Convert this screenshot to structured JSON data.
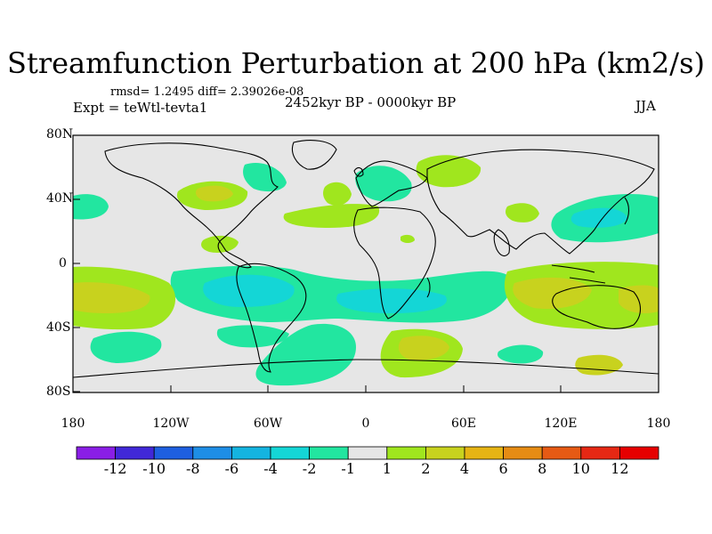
{
  "title": "Streamfunction Perturbation at 200 hPa (km2/s)",
  "stats_line": "rmsd= 1.2495 diff= 2.39026e-08",
  "experiment": "Expt = teWtl-tevta1",
  "period": "2452kyr BP - 0000kyr BP",
  "season": "JJA",
  "y_axis_labels": [
    "80N",
    "40N",
    "0",
    "40S",
    "80S"
  ],
  "x_axis_labels": [
    "180",
    "120W",
    "60W",
    "0",
    "60E",
    "120E",
    "180"
  ],
  "colorbar": {
    "labels": [
      "-12",
      "-10",
      "-8",
      "-6",
      "-4",
      "-2",
      "-1",
      "1",
      "2",
      "4",
      "6",
      "8",
      "10",
      "12"
    ],
    "colors": [
      "#8a1ee6",
      "#4128d8",
      "#1e5fe0",
      "#1e8ee6",
      "#14b4e0",
      "#14d6d6",
      "#22e6a0",
      "#e6e6e6",
      "#a0e61e",
      "#c8d21e",
      "#e6b414",
      "#e68c14",
      "#e65a14",
      "#e62814",
      "#e60000"
    ]
  },
  "colors": {
    "land_fill": "#e6e6e6",
    "neg_light": "#22e6a0",
    "neg_mid": "#14d6d6",
    "neg_strong": "#14b4e0",
    "pos_light": "#a0e61e",
    "pos_mid": "#c8d21e"
  }
}
